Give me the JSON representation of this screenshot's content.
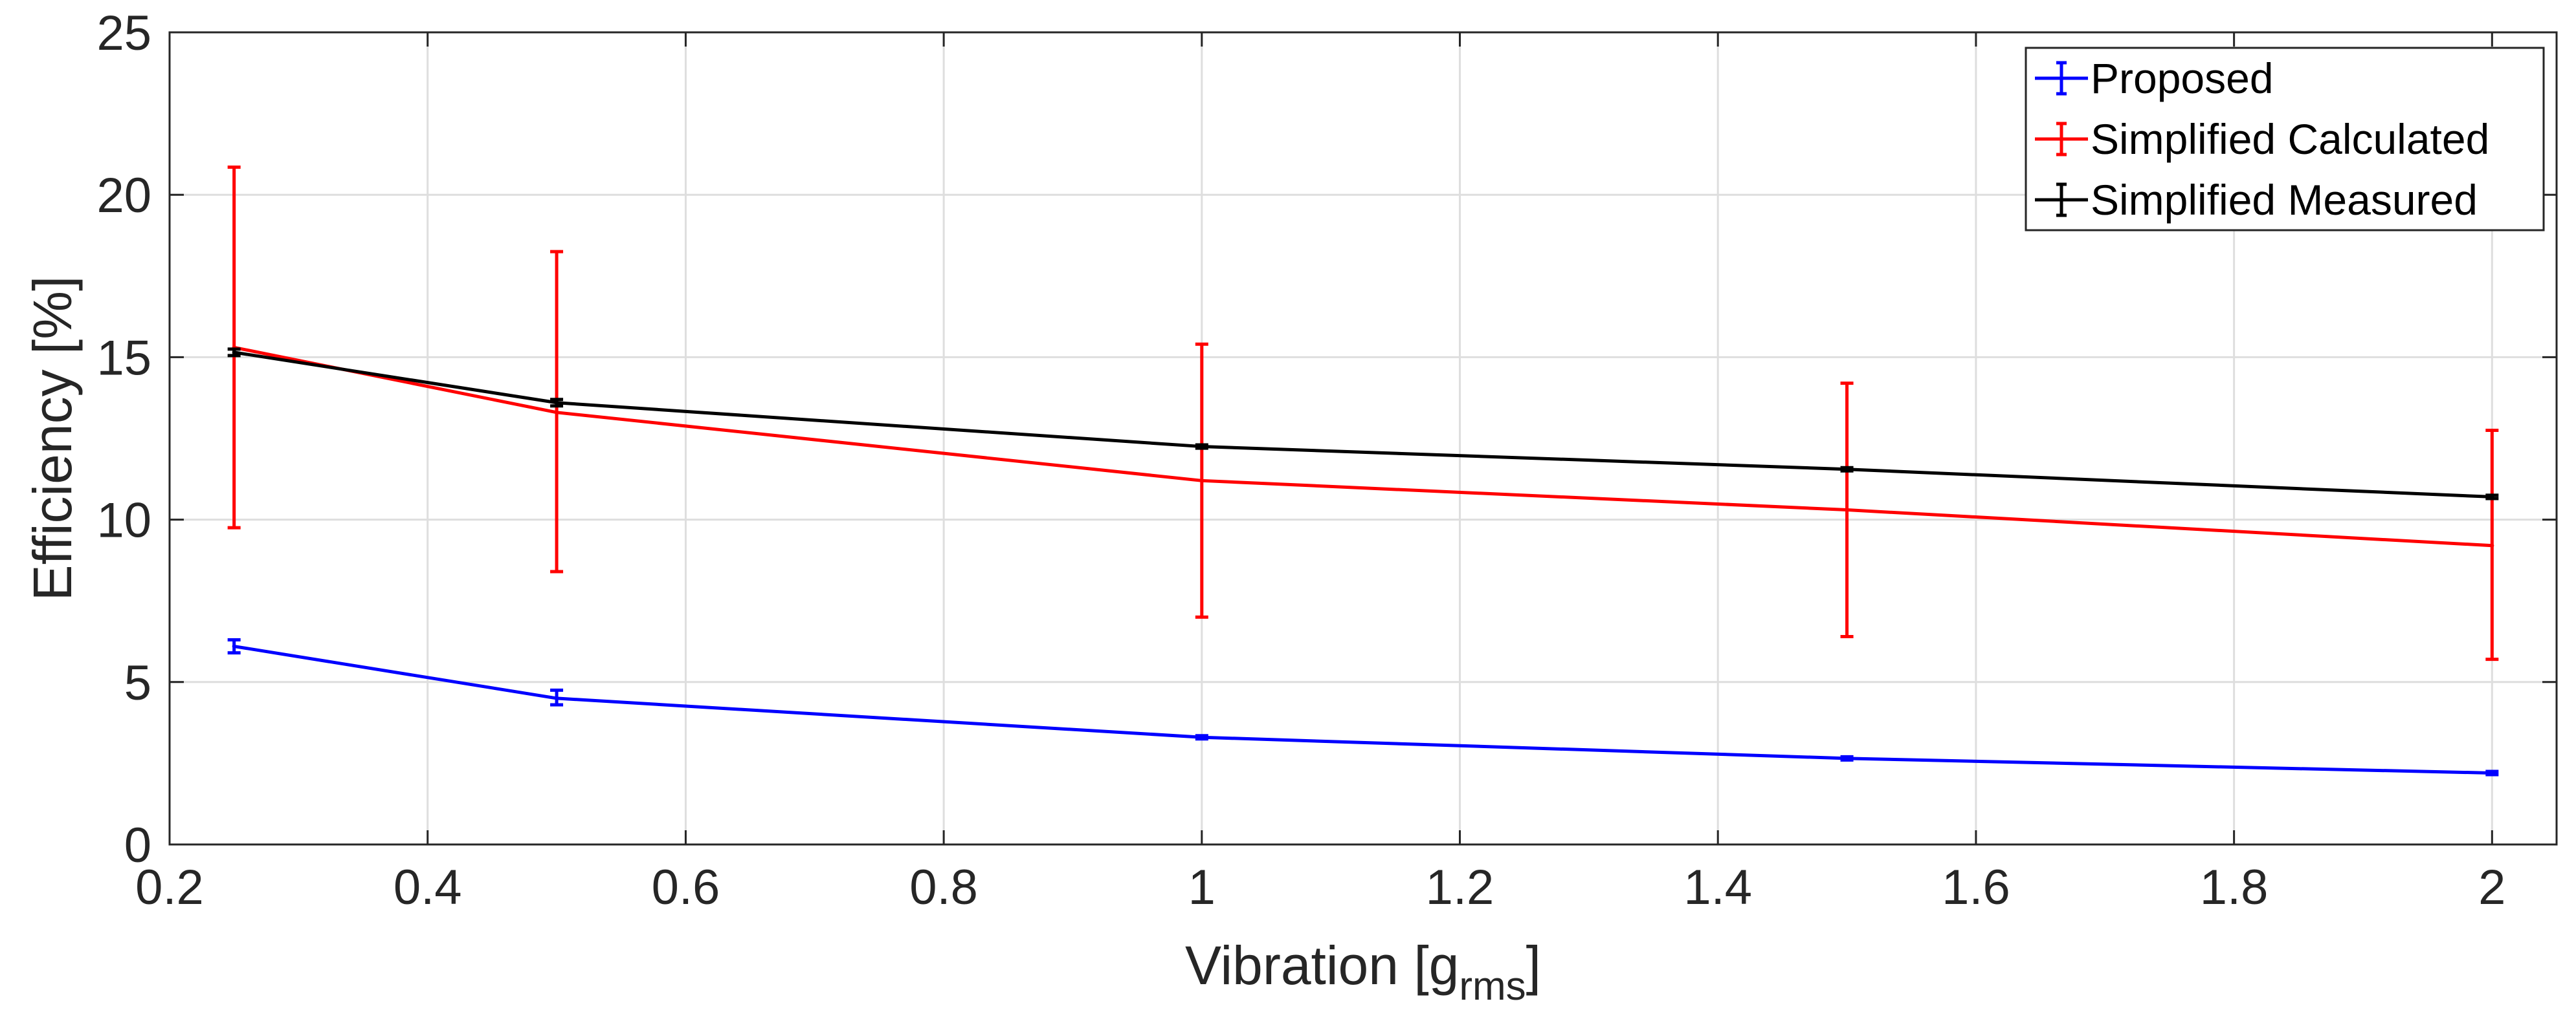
{
  "chart_data": {
    "type": "line",
    "xlabel": "Vibration [g",
    "xlabel_sub": "rms",
    "xlabel_end": "]",
    "ylabel": "Efficiency [%]",
    "xlim": [
      0.2,
      2.05
    ],
    "ylim": [
      0,
      25
    ],
    "x_ticks": [
      0.2,
      0.4,
      0.6,
      0.8,
      1,
      1.2,
      1.4,
      1.6,
      1.8,
      2
    ],
    "x_tick_labels": [
      "0.2",
      "0.4",
      "0.6",
      "0.8",
      "1",
      "1.2",
      "1.4",
      "1.6",
      "1.8",
      "2"
    ],
    "y_ticks": [
      0,
      5,
      10,
      15,
      20,
      25
    ],
    "y_tick_labels": [
      "0",
      "5",
      "10",
      "15",
      "20",
      "25"
    ],
    "grid": true,
    "legend_position": "top-right",
    "x": [
      0.25,
      0.5,
      1,
      1.5,
      2
    ],
    "series": [
      {
        "name": "Proposed",
        "color": "#0000ff",
        "values": [
          6.1,
          4.5,
          3.3,
          2.65,
          2.2
        ],
        "err_low": [
          5.9,
          4.3,
          3.25,
          2.6,
          2.15
        ],
        "err_high": [
          6.3,
          4.75,
          3.35,
          2.7,
          2.25
        ]
      },
      {
        "name": "Simplified Calculated",
        "color": "#ff0000",
        "values": [
          15.3,
          13.3,
          11.2,
          10.3,
          9.2
        ],
        "err_low": [
          9.75,
          8.4,
          7.0,
          6.4,
          5.7
        ],
        "err_high": [
          20.85,
          18.25,
          15.4,
          14.2,
          12.75
        ]
      },
      {
        "name": "Simplified Measured",
        "color": "#000000",
        "values": [
          15.15,
          13.6,
          12.25,
          11.55,
          10.7
        ],
        "err_low": [
          15.05,
          13.5,
          12.2,
          11.5,
          10.65
        ],
        "err_high": [
          15.25,
          13.7,
          12.3,
          11.6,
          10.75
        ]
      }
    ]
  }
}
